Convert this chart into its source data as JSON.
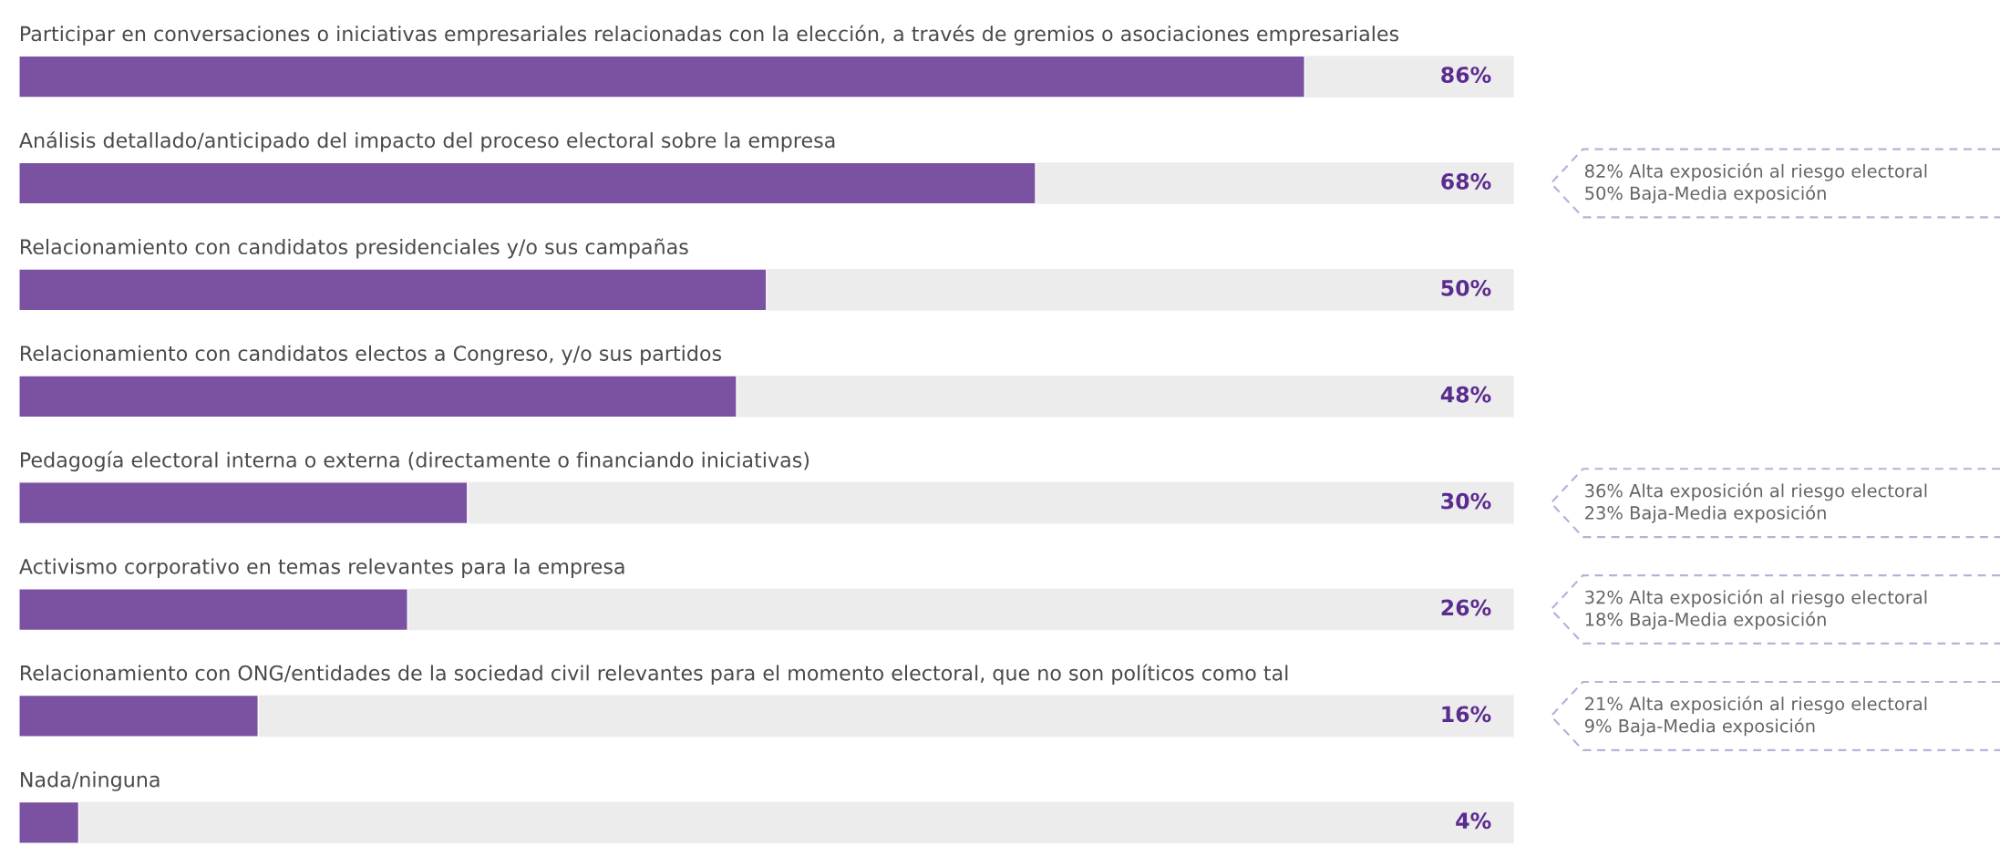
{
  "chart_data": {
    "type": "bar",
    "orientation": "horizontal",
    "categories": [
      "Participar en conversaciones o iniciativas empresariales relacionadas con la elección, a través de gremios o asociaciones empresariales",
      "Análisis detallado/anticipado del impacto del proceso electoral sobre la empresa",
      "Relacionamiento con candidatos presidenciales y/o sus campañas",
      "Relacionamiento con candidatos electos a Congreso, y/o sus partidos",
      "Pedagogía electoral interna o externa (directamente o financiando iniciativas)",
      "Activismo corporativo en temas relevantes para la empresa",
      "Relacionamiento con ONG/entidades de la sociedad civil relevantes para el momento electoral, que no son políticos como tal",
      "Nada/ninguna"
    ],
    "series": [
      {
        "color": "#7b52a1",
        "values": [
          86,
          68,
          50,
          48,
          30,
          26,
          16,
          4
        ],
        "value_labels": [
          "86%",
          "68%",
          "50%",
          "48%",
          "30%",
          "26%",
          "16%",
          "4%"
        ]
      }
    ],
    "xlim": [
      0,
      100
    ],
    "tick_labels": false,
    "annotations": [
      "82% Alta exposición al riesgo electoral\n50% Baja-Media exposición",
      "36% Alta exposición al riesgo electoral\n23% Baja-Media exposición",
      "32% Alta exposición al riesgo electoral\n18% Baja-Media exposición",
      "21% Alta exposición al riesgo electoral\n9% Baja-Media exposición"
    ],
    "legend": false
  }
}
